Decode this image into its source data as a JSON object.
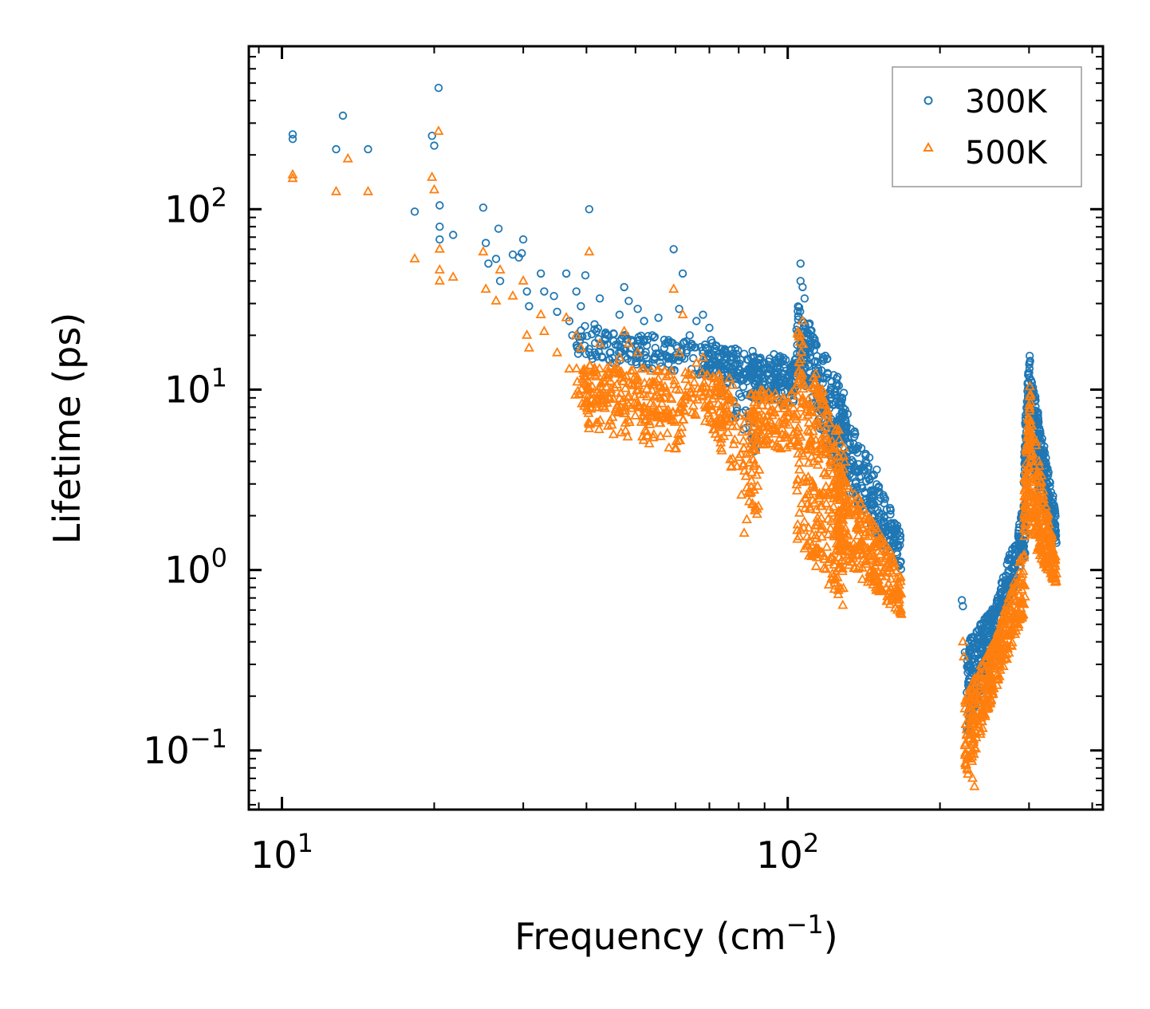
{
  "chart_data": {
    "type": "scatter",
    "title": "",
    "xlabel": "Frequency (cm",
    "xlabel_sup": "−1",
    "xlabel_suffix": ")",
    "ylabel": "Lifetime (ps)",
    "xscale": "log",
    "yscale": "log",
    "xlim": [
      8.6,
      420
    ],
    "ylim": [
      0.047,
      800
    ],
    "x_ticks": [
      {
        "value": 10,
        "base": "10",
        "exp": "1"
      },
      {
        "value": 100,
        "base": "10",
        "exp": "2"
      }
    ],
    "y_ticks": [
      {
        "value": 0.1,
        "base": "10",
        "exp": "−1"
      },
      {
        "value": 1,
        "base": "10",
        "exp": "0"
      },
      {
        "value": 10,
        "base": "10",
        "exp": "1"
      },
      {
        "value": 100,
        "base": "10",
        "exp": "2"
      }
    ],
    "legend_position": "top-right",
    "series": [
      {
        "name": "300K",
        "marker": "circle",
        "color": "#1f77b4",
        "points": [
          [
            10.5,
            260
          ],
          [
            10.5,
            245
          ],
          [
            12.8,
            215
          ],
          [
            13.2,
            330
          ],
          [
            14.8,
            215
          ],
          [
            18.3,
            97
          ],
          [
            19.8,
            255
          ],
          [
            20.0,
            225
          ],
          [
            20.4,
            470
          ],
          [
            20.5,
            105
          ],
          [
            20.5,
            80
          ],
          [
            20.5,
            68
          ],
          [
            21.8,
            72
          ],
          [
            25,
            102
          ],
          [
            25.3,
            65
          ],
          [
            25.6,
            50
          ],
          [
            26.5,
            53
          ],
          [
            26.8,
            78
          ],
          [
            27.0,
            40
          ],
          [
            28.6,
            56
          ],
          [
            29.4,
            54
          ],
          [
            29.8,
            57
          ],
          [
            30.0,
            68
          ],
          [
            30.5,
            35
          ],
          [
            30.8,
            29
          ],
          [
            32.5,
            44
          ],
          [
            33.0,
            35
          ],
          [
            34.5,
            33
          ],
          [
            35,
            27
          ],
          [
            36.5,
            44
          ],
          [
            37,
            24
          ],
          [
            37.5,
            20
          ],
          [
            38.2,
            35
          ],
          [
            39,
            29
          ],
          [
            39.8,
            43
          ],
          [
            40.5,
            100
          ],
          [
            41.5,
            23
          ],
          [
            42.5,
            32
          ],
          [
            43.5,
            19
          ],
          [
            44.5,
            16
          ],
          [
            46.5,
            26
          ],
          [
            47.5,
            37
          ],
          [
            48.5,
            31
          ],
          [
            50.5,
            28
          ],
          [
            52,
            24
          ],
          [
            54,
            20
          ],
          [
            55.5,
            25
          ],
          [
            57,
            17
          ],
          [
            59.5,
            60
          ],
          [
            61,
            28
          ],
          [
            62,
            44
          ],
          [
            64,
            20
          ],
          [
            66,
            24
          ],
          [
            68,
            26
          ],
          [
            70,
            22
          ]
        ],
        "bands": [
          {
            "x": [
              38,
              105
            ],
            "y0": [
              23,
              15
            ],
            "y1": [
              15,
              10
            ],
            "n": 320
          },
          {
            "x": [
              70,
              88
            ],
            "y0": [
              20,
              12
            ],
            "y1": [
              12,
              4
            ],
            "n": 70
          },
          {
            "x": [
              84,
              104
            ],
            "y0": [
              15,
              15
            ],
            "y1": [
              9,
              8
            ],
            "n": 120
          },
          {
            "x": [
              104,
              130
            ],
            "y0": [
              32,
              10
            ],
            "y1": [
              14,
              2.5
            ],
            "n": 250
          },
          {
            "x": [
              125,
              168
            ],
            "y0": [
              10,
              1.6
            ],
            "y1": [
              3.5,
              0.95
            ],
            "n": 240
          },
          {
            "x": [
              226,
              255
            ],
            "y0": [
              0.4,
              0.62
            ],
            "y1": [
              0.12,
              0.35
            ],
            "n": 200
          },
          {
            "x": [
              255,
              295
            ],
            "y0": [
              0.6,
              2.5
            ],
            "y1": [
              0.38,
              1.2
            ],
            "n": 170
          },
          {
            "x": [
              293,
              302
            ],
            "y0": [
              5,
              20
            ],
            "y1": [
              2,
              8
            ],
            "n": 80
          },
          {
            "x": [
              302,
              340
            ],
            "y0": [
              13,
              2
            ],
            "y1": [
              4,
              1.3
            ],
            "n": 220
          }
        ],
        "extra_points": [
          [
            106,
            50
          ],
          [
            106,
            40
          ],
          [
            107,
            37
          ],
          [
            108,
            32
          ],
          [
            130,
            6
          ],
          [
            135,
            5
          ],
          [
            145,
            4.2
          ],
          [
            150,
            3.6
          ],
          [
            221,
            0.68
          ],
          [
            222,
            0.63
          ],
          [
            224,
            0.35
          ],
          [
            227,
            0.27
          ],
          [
            229,
            0.22
          ]
        ]
      },
      {
        "name": "500K",
        "marker": "triangle",
        "color": "#ff7f0e",
        "points": [
          [
            10.5,
            155
          ],
          [
            10.5,
            148
          ],
          [
            12.8,
            125
          ],
          [
            13.5,
            190
          ],
          [
            14.8,
            125
          ],
          [
            18.3,
            53
          ],
          [
            19.8,
            150
          ],
          [
            20.0,
            128
          ],
          [
            20.4,
            270
          ],
          [
            20.5,
            60
          ],
          [
            20.5,
            46
          ],
          [
            20.5,
            40
          ],
          [
            21.8,
            42
          ],
          [
            25,
            58
          ],
          [
            25.3,
            36
          ],
          [
            26.5,
            31
          ],
          [
            27.0,
            46
          ],
          [
            28.6,
            33
          ],
          [
            30.0,
            40
          ],
          [
            30.5,
            20
          ],
          [
            30.8,
            17
          ],
          [
            32.5,
            26
          ],
          [
            33.0,
            21
          ],
          [
            35,
            16
          ],
          [
            36.5,
            25
          ],
          [
            37,
            13
          ],
          [
            38.2,
            20
          ],
          [
            39,
            17
          ],
          [
            40.5,
            58
          ],
          [
            41.5,
            12
          ],
          [
            42.5,
            18
          ],
          [
            43.5,
            11
          ],
          [
            44.5,
            9
          ],
          [
            46.5,
            15
          ],
          [
            47.5,
            21
          ],
          [
            48.5,
            18
          ],
          [
            50.5,
            16
          ],
          [
            52,
            13
          ],
          [
            54,
            11
          ],
          [
            57,
            9
          ],
          [
            59.5,
            36
          ],
          [
            61,
            16
          ],
          [
            62,
            26
          ],
          [
            64,
            12
          ],
          [
            66,
            14
          ],
          [
            68,
            15
          ]
        ],
        "bands": [
          {
            "x": [
              38,
              78
            ],
            "y0": [
              14,
              12
            ],
            "y1": [
              8,
              6
            ],
            "n": 280
          },
          {
            "x": [
              40,
              62
            ],
            "y0": [
              10,
              7
            ],
            "y1": [
              6,
              4.5
            ],
            "n": 80
          },
          {
            "x": [
              70,
              88
            ],
            "y0": [
              12,
              6
            ],
            "y1": [
              6,
              1.8
            ],
            "n": 90
          },
          {
            "x": [
              84,
              104
            ],
            "y0": [
              10,
              10
            ],
            "y1": [
              5,
              4.5
            ],
            "n": 120
          },
          {
            "x": [
              104,
              130
            ],
            "y0": [
              22,
              5
            ],
            "y1": [
              1.5,
              0.6
            ],
            "n": 320
          },
          {
            "x": [
              125,
              168
            ],
            "y0": [
              4,
              1
            ],
            "y1": [
              1.2,
              0.55
            ],
            "n": 260
          },
          {
            "x": [
              224,
              255
            ],
            "y0": [
              0.2,
              0.4
            ],
            "y1": [
              0.065,
              0.2
            ],
            "n": 200
          },
          {
            "x": [
              255,
              295
            ],
            "y0": [
              0.38,
              1.4
            ],
            "y1": [
              0.2,
              0.6
            ],
            "n": 170
          },
          {
            "x": [
              293,
              302
            ],
            "y0": [
              3,
              12
            ],
            "y1": [
              1,
              5
            ],
            "n": 80
          },
          {
            "x": [
              302,
              340
            ],
            "y0": [
              8,
              1.1
            ],
            "y1": [
              1.4,
              0.82
            ],
            "n": 220
          }
        ],
        "extra_points": [
          [
            82,
            1.6
          ],
          [
            83,
            1.9
          ],
          [
            81,
            2.6
          ],
          [
            107,
            24
          ],
          [
            106,
            20
          ],
          [
            222,
            0.4
          ],
          [
            223,
            0.33
          ],
          [
            224,
            0.17
          ],
          [
            225,
            0.14
          ],
          [
            232,
            0.07
          ],
          [
            234,
            0.063
          ]
        ]
      }
    ]
  }
}
